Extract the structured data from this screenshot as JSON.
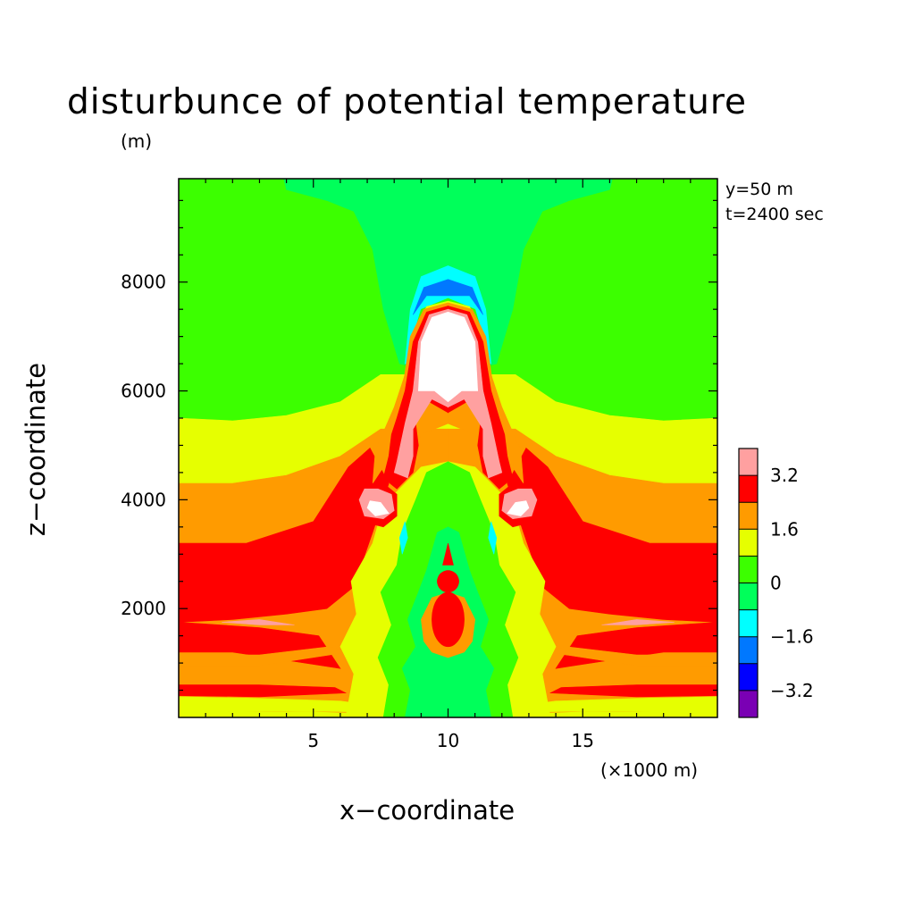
{
  "chart_data": {
    "type": "heatmap",
    "title": "disturbunce of potential temperature",
    "xlabel": "x−coordinate",
    "ylabel": "z−coordinate",
    "x_unit": "(×1000 m)",
    "z_unit": "(m)",
    "annotations": [
      "y=50 m",
      "t=2400 sec"
    ],
    "xlim": [
      0,
      20
    ],
    "ylim": [
      0,
      9900
    ],
    "x_ticks": [
      5,
      10,
      15
    ],
    "y_ticks": [
      2000,
      4000,
      6000,
      8000
    ],
    "x_tick_labels": [
      "5",
      "10",
      "15"
    ],
    "y_tick_labels": [
      "2000",
      "4000",
      "6000",
      "8000"
    ],
    "colorbar": {
      "levels": [
        -4.0,
        -3.2,
        -2.4,
        -1.6,
        -0.8,
        0,
        0.8,
        1.6,
        2.4,
        3.2,
        4.0
      ],
      "labels": [
        {
          "value": 3.2,
          "text": "3.2"
        },
        {
          "value": 1.6,
          "text": "1.6"
        },
        {
          "value": 0,
          "text": "0"
        },
        {
          "value": -1.6,
          "text": "−1.6"
        },
        {
          "value": -3.2,
          "text": "−3.2"
        }
      ],
      "colors": [
        "#7a00b4",
        "#0000ff",
        "#0078ff",
        "#00ffff",
        "#00ff5a",
        "#3cff00",
        "#e6ff00",
        "#ff9b00",
        "#ff0000",
        "#ffa0a0",
        "#ffffff"
      ]
    },
    "grid": false
  }
}
